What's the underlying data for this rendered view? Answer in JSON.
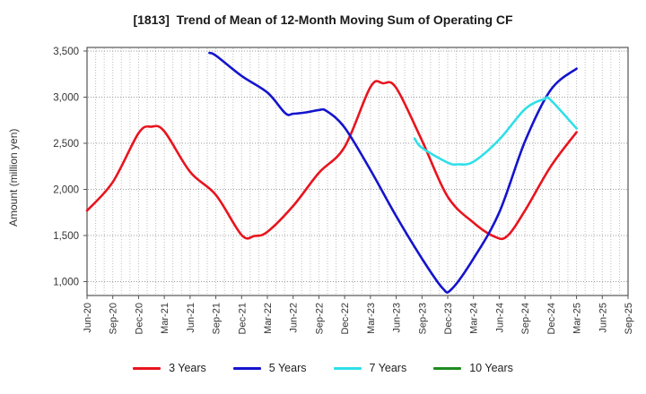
{
  "chart_data": {
    "type": "line",
    "title": "[1813]  Trend of Mean of 12-Month Moving Sum of Operating CF",
    "ylabel": "Amount (million yen)",
    "x_categories": [
      "Jun-20",
      "Sep-20",
      "Dec-20",
      "Mar-21",
      "Jun-21",
      "Sep-21",
      "Dec-21",
      "Mar-22",
      "Jun-22",
      "Sep-22",
      "Dec-22",
      "Mar-23",
      "Jun-23",
      "Sep-23",
      "Dec-23",
      "Mar-24",
      "Jun-24",
      "Sep-24",
      "Dec-24",
      "Mar-25",
      "Jun-25",
      "Sep-25"
    ],
    "yticks": [
      {
        "value": 1000,
        "label": "1,000"
      },
      {
        "value": 1500,
        "label": "1,500"
      },
      {
        "value": 2000,
        "label": "2,000"
      },
      {
        "value": 2500,
        "label": "2,500"
      },
      {
        "value": 3000,
        "label": "3,000"
      },
      {
        "value": 3500,
        "label": "3,500"
      }
    ],
    "ylim": [
      850,
      3540
    ],
    "x_index_range": [
      0,
      21
    ],
    "grid": {
      "vertical": "monthly-dotted",
      "horizontal": "at-yticks-dotted"
    },
    "legend_position": "bottom",
    "units": "million yen",
    "series": [
      {
        "name": "3 Years",
        "color": "#e8141e",
        "points": [
          [
            0,
            1770
          ],
          [
            1,
            2080
          ],
          [
            2,
            2610
          ],
          [
            2.5,
            2680
          ],
          [
            3,
            2630
          ],
          [
            4,
            2190
          ],
          [
            5,
            1940
          ],
          [
            6,
            1505
          ],
          [
            6.5,
            1495
          ],
          [
            7,
            1540
          ],
          [
            8,
            1820
          ],
          [
            9,
            2180
          ],
          [
            10,
            2460
          ],
          [
            11,
            3110
          ],
          [
            11.5,
            3150
          ],
          [
            12,
            3100
          ],
          [
            13,
            2530
          ],
          [
            14,
            1920
          ],
          [
            15,
            1640
          ],
          [
            15.8,
            1490
          ],
          [
            16.3,
            1490
          ],
          [
            17,
            1770
          ],
          [
            18,
            2250
          ],
          [
            19,
            2620
          ]
        ]
      },
      {
        "name": "5 Years",
        "color": "#1414cd",
        "points": [
          [
            4.75,
            3480
          ],
          [
            5,
            3450
          ],
          [
            6,
            3230
          ],
          [
            7,
            3050
          ],
          [
            7.7,
            2825
          ],
          [
            8,
            2820
          ],
          [
            8.5,
            2835
          ],
          [
            9,
            2860
          ],
          [
            9.3,
            2850
          ],
          [
            10,
            2670
          ],
          [
            11,
            2210
          ],
          [
            12,
            1710
          ],
          [
            13,
            1250
          ],
          [
            13.8,
            928
          ],
          [
            14.15,
            918
          ],
          [
            15,
            1250
          ],
          [
            16,
            1750
          ],
          [
            17,
            2520
          ],
          [
            18,
            3080
          ],
          [
            19,
            3310
          ]
        ]
      },
      {
        "name": "7 Years",
        "color": "#2fdfe8",
        "points": [
          [
            12.72,
            2550
          ],
          [
            13,
            2450
          ],
          [
            14,
            2290
          ],
          [
            14.4,
            2272
          ],
          [
            15,
            2300
          ],
          [
            16,
            2540
          ],
          [
            17,
            2870
          ],
          [
            17.75,
            2980
          ],
          [
            18,
            2968
          ],
          [
            19,
            2660
          ]
        ]
      },
      {
        "name": "10 Years",
        "color": "#1e8c1e",
        "points": []
      }
    ]
  }
}
